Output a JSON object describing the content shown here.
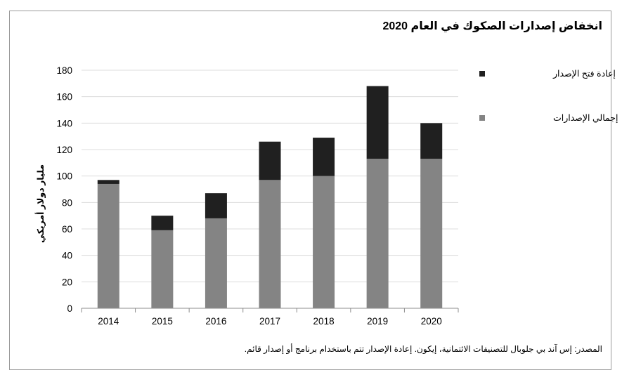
{
  "chart_data": {
    "type": "bar",
    "stacked": true,
    "title": "انخفاض إصدارات الصكوك في العام 2020",
    "ylabel": "مليار دولار أمريكي",
    "xlabel": "",
    "categories": [
      "2014",
      "2015",
      "2016",
      "2017",
      "2018",
      "2019",
      "2020"
    ],
    "ylim": [
      0,
      180
    ],
    "yticks": [
      "0",
      "20",
      "40",
      "60",
      "80",
      "100",
      "120",
      "140",
      "160",
      "180"
    ],
    "grid": true,
    "legend_position": "right",
    "series": [
      {
        "name": "إجمالي الإصدارات",
        "color": "#848484",
        "values": [
          94,
          59,
          68,
          97,
          100,
          113,
          113
        ]
      },
      {
        "name": "إعادة فتح الإصدار",
        "color": "#202020",
        "values": [
          3,
          11,
          19,
          29,
          29,
          55,
          27
        ]
      }
    ],
    "legend_order": [
      1,
      0
    ]
  },
  "source_note": "المصدر: إس آند بي جلوبال للتصنيفات الائتمانية، إيكون. إعادة الإصدار تتم باستخدام برنامج أو إصدار قائم."
}
